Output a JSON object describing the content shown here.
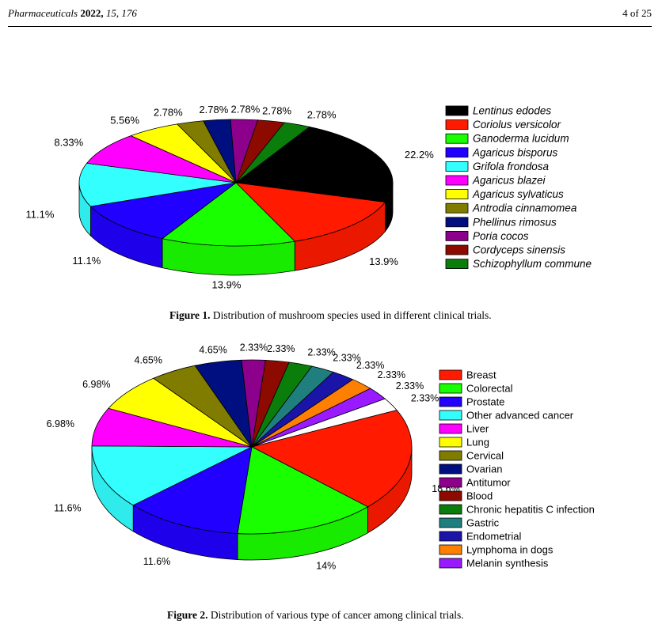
{
  "header": {
    "journal": "Pharmaceuticals",
    "year": "2022,",
    "volume_page": "15, 176",
    "page_of": "4 of 25"
  },
  "chart_data": [
    {
      "type": "pie",
      "title": "",
      "caption_label": "Figure 1.",
      "caption_text": "Distribution of mushroom species used in different clinical trials.",
      "legend_position": "right",
      "legend_italic": true,
      "unit": "%",
      "slices": [
        {
          "name": "Lentinus edodes",
          "value": 22.2,
          "label": "22.2%",
          "color": "#000000"
        },
        {
          "name": "Coriolus versicolor",
          "value": 13.9,
          "label": "13.9%",
          "color": "#ff1a00"
        },
        {
          "name": "Ganoderma lucidum",
          "value": 13.9,
          "label": "13.9%",
          "color": "#1aff00"
        },
        {
          "name": "Agaricus bisporus",
          "value": 11.1,
          "label": "11.1%",
          "color": "#2200ff"
        },
        {
          "name": "Grifola frondosa",
          "value": 11.1,
          "label": "11.1%",
          "color": "#33ffff"
        },
        {
          "name": "Agaricus blazei",
          "value": 8.33,
          "label": "8.33%",
          "color": "#ff00ff"
        },
        {
          "name": "Agaricus sylvaticus",
          "value": 5.56,
          "label": "5.56%",
          "color": "#ffff00"
        },
        {
          "name": "Antrodia cinnamomea",
          "value": 2.78,
          "label": "2.78%",
          "color": "#807c00"
        },
        {
          "name": "Phellinus rimosus",
          "value": 2.78,
          "label": "2.78%",
          "color": "#000f80"
        },
        {
          "name": "Poria cocos",
          "value": 2.78,
          "label": "2.78%",
          "color": "#8c008c"
        },
        {
          "name": "Cordyceps sinensis",
          "value": 2.78,
          "label": "2.78%",
          "color": "#8c0a00"
        },
        {
          "name": "Schizophyllum commune",
          "value": 2.78,
          "label": "2.78%",
          "color": "#0a7d0a"
        }
      ]
    },
    {
      "type": "pie",
      "title": "",
      "caption_label": "Figure 2.",
      "caption_text": "Distribution of various type of cancer among clinical trials.",
      "legend_position": "right",
      "legend_italic": false,
      "unit": "%",
      "slices": [
        {
          "name": "Breast",
          "value": 18.6,
          "label": "18.6%",
          "color": "#ff1a00"
        },
        {
          "name": "Colorectal",
          "value": 14.0,
          "label": "14%",
          "color": "#1aff00"
        },
        {
          "name": "Prostate",
          "value": 11.6,
          "label": "11.6%",
          "color": "#2200ff"
        },
        {
          "name": "Other advanced cancer",
          "value": 11.6,
          "label": "11.6%",
          "color": "#33ffff"
        },
        {
          "name": "Liver",
          "value": 6.98,
          "label": "6.98%",
          "color": "#ff00ff"
        },
        {
          "name": "Lung",
          "value": 6.98,
          "label": "6.98%",
          "color": "#ffff00"
        },
        {
          "name": "Cervical",
          "value": 4.65,
          "label": "4.65%",
          "color": "#807c00"
        },
        {
          "name": "Ovarian",
          "value": 4.65,
          "label": "4.65%",
          "color": "#000f80"
        },
        {
          "name": "Antitumor",
          "value": 2.33,
          "label": "2.33%",
          "color": "#8c008c"
        },
        {
          "name": "Blood",
          "value": 2.33,
          "label": "2.33%",
          "color": "#8c0a00"
        },
        {
          "name": "Chronic hepatitis C infection",
          "value": 2.33,
          "label": "2.33%",
          "color": "#0a7d0a"
        },
        {
          "name": "Gastric",
          "value": 2.33,
          "label": "2.33%",
          "color": "#1f7f7f"
        },
        {
          "name": "Endometrial",
          "value": 2.33,
          "label": "2.33%",
          "color": "#1a14a8"
        },
        {
          "name": "Lymphoma in dogs",
          "value": 2.33,
          "label": "2.33%",
          "color": "#ff8000"
        },
        {
          "name": "Melanin synthesis",
          "value": 2.33,
          "label": "2.33%",
          "color": "#9a1aff"
        },
        {
          "name": "",
          "value": 2.33,
          "label": "2.33%",
          "color": "#ffffff"
        }
      ]
    }
  ]
}
